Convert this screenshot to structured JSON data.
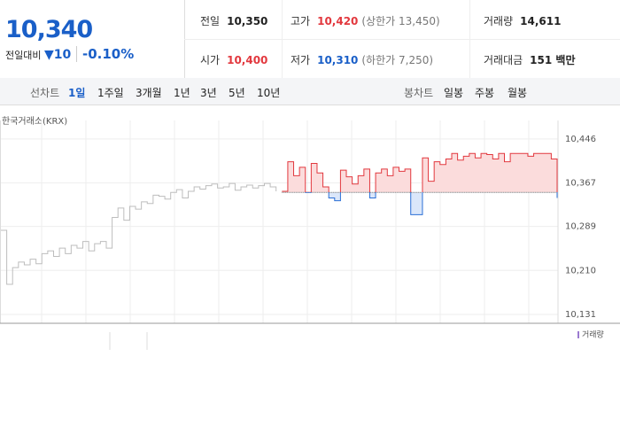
{
  "quote": {
    "price": "10,340",
    "change_label": "전일대비",
    "change": "10",
    "change_rate": "-0.10%"
  },
  "summary": [
    [
      {
        "label": "전일",
        "value": "10,350"
      },
      {
        "label": "고가",
        "value": "10,420",
        "note": "(상한가 13,450)"
      },
      {
        "label": "거래량",
        "value": "14,611"
      }
    ],
    [
      {
        "label": "시가",
        "value": "10,400"
      },
      {
        "label": "저가",
        "value": "10,310",
        "note": "(하한가 7,250)"
      },
      {
        "label": "거래대금",
        "value": "151 백만"
      }
    ]
  ],
  "tabs": {
    "line_label": "선차트",
    "line": [
      "1일",
      "1주일",
      "3개월",
      "1년",
      "3년",
      "5년",
      "10년"
    ],
    "line_selected": 0,
    "candle_label": "봉차트",
    "candle": [
      "일봉",
      "주봉",
      "월봉"
    ]
  },
  "chart_data": {
    "type": "line",
    "source": "한국거래소(KRX)",
    "legend": "거래량",
    "reference_line": 10350,
    "down_color": "#2a6fd6",
    "up_fill": "#fbdcdc",
    "down_fill": "#dbe7fa",
    "ylim": [
      10115,
      10476
    ],
    "yticks": [
      {
        "value": 10446,
        "label": "10,446"
      },
      {
        "value": 10367,
        "label": "10,367"
      },
      {
        "value": 10289,
        "label": "10,289"
      },
      {
        "value": 10210,
        "label": "10,210"
      },
      {
        "value": 10131,
        "label": "10,131"
      }
    ],
    "series": [
      {
        "color": "#bdbdbd",
        "values": [
          10282,
          10185,
          10215,
          10225,
          10220,
          10230,
          10222,
          10240,
          10245,
          10235,
          10250,
          10240,
          10255,
          10250,
          10262,
          10245,
          10258,
          10262,
          10250,
          10305,
          10322,
          10300,
          10325,
          10320,
          10333,
          10330,
          10345,
          10343,
          10338,
          10350,
          10355,
          10340,
          10352,
          10360,
          10356,
          10362,
          10365,
          10358,
          10360,
          10366,
          10354,
          10360,
          10363,
          10358,
          10362,
          10366,
          10360,
          10352,
          null,
          null,
          null,
          null,
          null,
          null,
          null,
          null,
          null,
          null,
          null,
          null,
          null,
          null,
          null,
          null,
          null,
          null,
          null,
          null,
          null,
          null,
          null,
          null,
          null,
          null,
          null,
          null,
          null,
          null,
          null,
          null,
          null,
          null,
          null,
          null,
          null,
          null,
          null,
          null,
          null,
          null,
          null,
          null,
          null,
          null,
          null,
          null
        ]
      },
      {
        "color": "#e2383e",
        "values": [
          null,
          null,
          null,
          null,
          null,
          null,
          null,
          null,
          null,
          null,
          null,
          null,
          null,
          null,
          null,
          null,
          null,
          null,
          null,
          null,
          null,
          null,
          null,
          null,
          null,
          null,
          null,
          null,
          null,
          null,
          null,
          null,
          null,
          null,
          null,
          null,
          null,
          null,
          null,
          null,
          null,
          null,
          null,
          null,
          null,
          null,
          null,
          null,
          10352,
          10405,
          10380,
          10395,
          10350,
          10402,
          10385,
          10360,
          10340,
          10335,
          10390,
          10378,
          10365,
          10380,
          10392,
          10340,
          10385,
          10392,
          10380,
          10395,
          10388,
          10392,
          10310,
          10310,
          10412,
          10370,
          10405,
          10400,
          10410,
          10420,
          10408,
          10415,
          10420,
          10412,
          10420,
          10418,
          10410,
          10420,
          10405,
          10420,
          10420,
          10420,
          10415,
          10420,
          10420,
          10420,
          10410,
          10340
        ]
      }
    ]
  }
}
